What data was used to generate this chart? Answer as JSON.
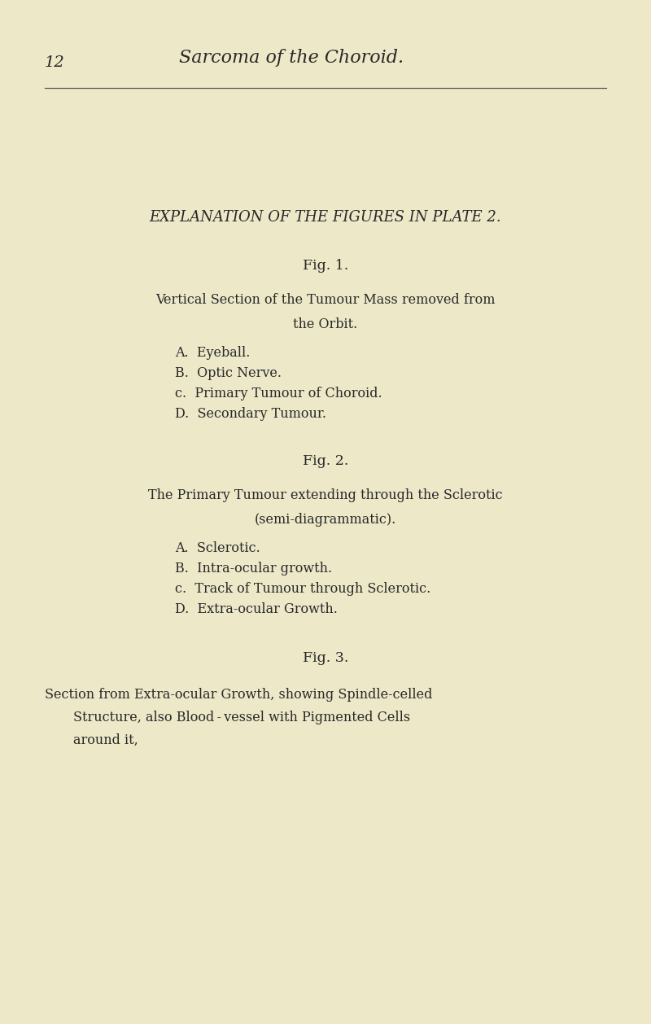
{
  "background_color": "#ede8c8",
  "page_number": "12",
  "header_title": "Sarcoma of the Choroid.",
  "main_title": "EXPLANATION OF THE FIGURES IN PLATE 2.",
  "fig1_label": "Fig. 1.",
  "fig1_desc_line1": "Vertical Section of the Tumour Mass removed from",
  "fig1_desc_line2": "the Orbit.",
  "fig1_items": [
    "A.  Eyeball.",
    "B.  Optic Nerve.",
    "c.  Primary Tumour of Choroid.",
    "D.  Secondary Tumour."
  ],
  "fig2_label": "Fig. 2.",
  "fig2_desc_line1": "The Primary Tumour extending through the Sclerotic",
  "fig2_desc_line2": "(semi-diagrammatic).",
  "fig2_items": [
    "A.  Sclerotic.",
    "B.  Intra-ocular growth.",
    "c.  Track of Tumour through Sclerotic.",
    "D.  Extra-ocular Growth."
  ],
  "fig3_label": "Fig. 3.",
  "fig3_desc_line1": "Section from Extra-ocular Growth, showing Spindle-celled",
  "fig3_desc_line2": "Structure, also Blood - vessel with Pigmented Cells",
  "fig3_desc_line3": "around it,",
  "text_color": "#282828",
  "line_color": "#555555",
  "fig_width": 8.0,
  "fig_height": 12.58
}
